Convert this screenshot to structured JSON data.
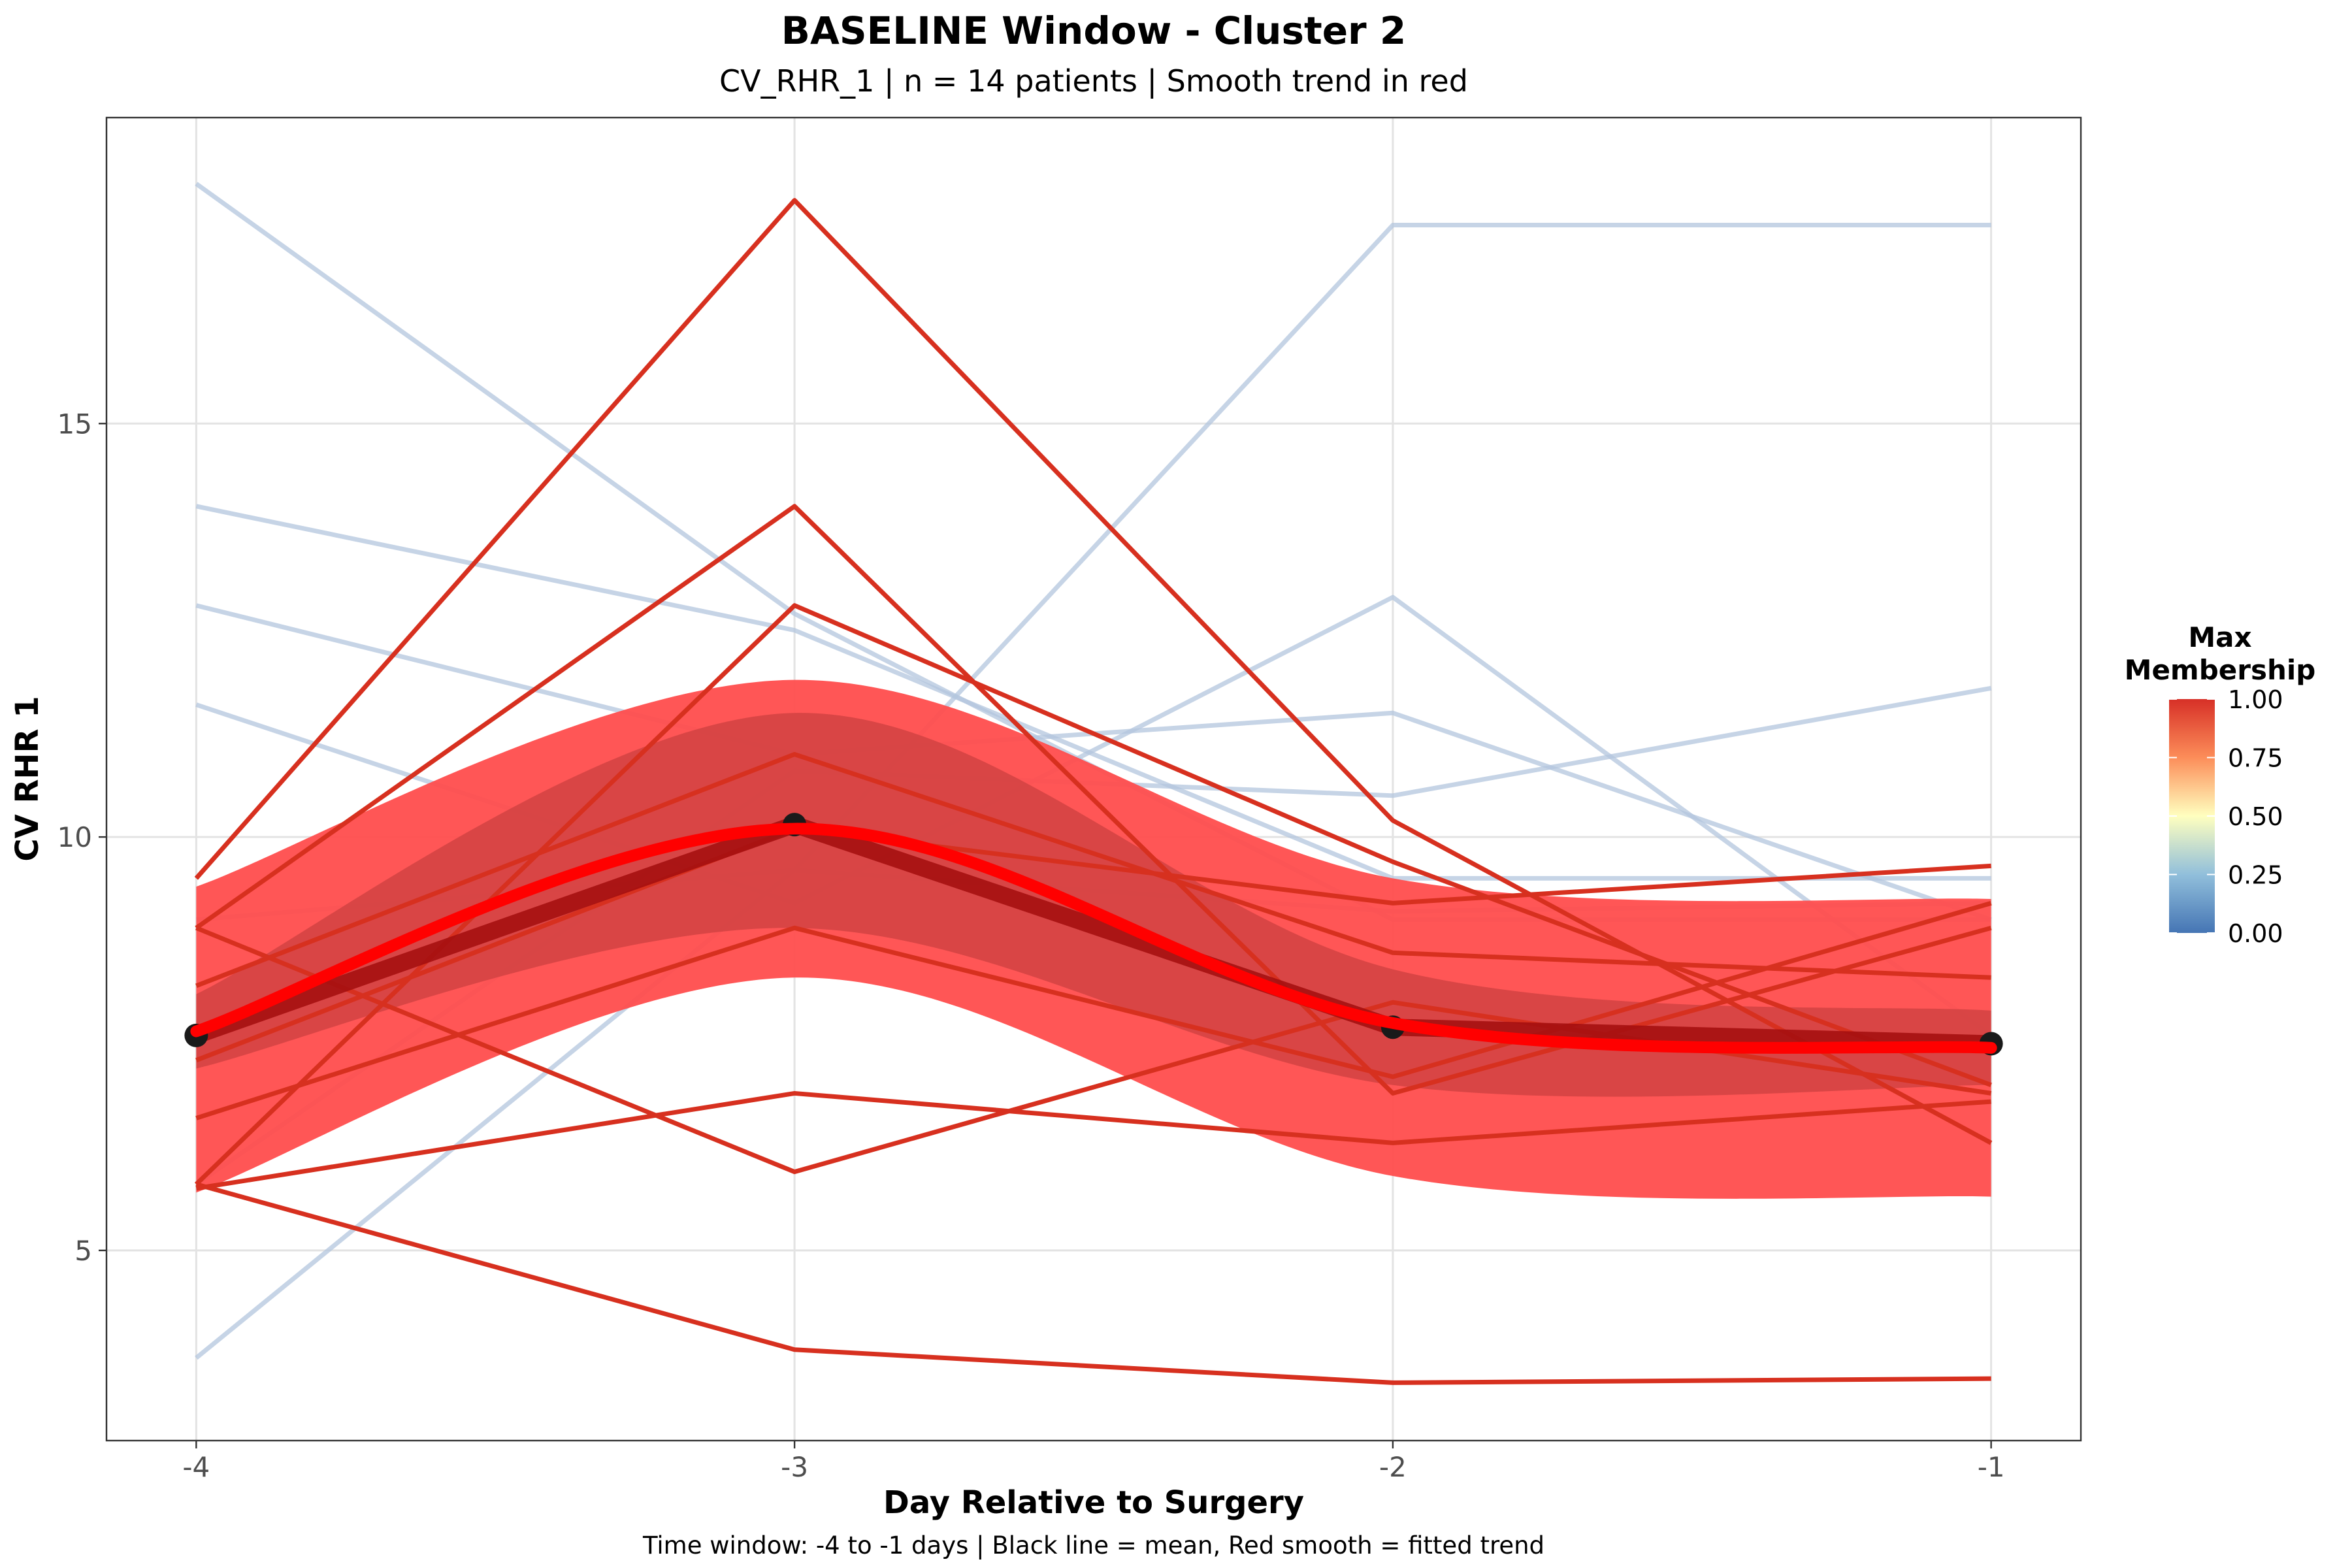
{
  "chart_data": {
    "type": "line",
    "title": "BASELINE Window - Cluster 2",
    "subtitle": "CV_RHR_1 | n = 14 patients | Smooth trend in red",
    "xlabel": "Day Relative to Surgery",
    "ylabel": "CV RHR 1",
    "caption": "Time window: -4 to -1 days | Black line = mean, Red smooth = fitted trend",
    "x": [
      -4,
      -3,
      -2,
      -1
    ],
    "x_tick_labels": [
      "-4",
      "-3",
      "-2",
      "-1"
    ],
    "y_ticks": [
      5,
      10,
      15
    ],
    "y_tick_labels": [
      "5",
      "10",
      "15"
    ],
    "xlim": [
      -4.15,
      -0.85
    ],
    "ylim": [
      2.7,
      18.7
    ],
    "grid": true,
    "legend": {
      "title": "Max\nMembership",
      "placement": "right",
      "tick_values": [
        0.0,
        0.25,
        0.5,
        0.75,
        1.0
      ],
      "tick_labels": [
        "0.00",
        "0.25",
        "0.50",
        "0.75",
        "1.00"
      ],
      "gradient_colors": [
        "#4575b4",
        "#91bfdb",
        "#ffffbf",
        "#fc8d59",
        "#d73027"
      ]
    },
    "colors": {
      "low_membership": "#b3c6de",
      "high_membership": "#d7301f",
      "ribbon_outer": "#ff4d4d",
      "ribbon_inner": "#cc4040",
      "mean_line": "#a50f0f",
      "mean_point": "#1a1a1a",
      "smooth_line": "#ff0000"
    },
    "series_low_membership": [
      [
        17.9,
        12.7,
        9.0,
        9.0
      ],
      [
        14.0,
        12.5,
        9.5,
        9.5
      ],
      [
        12.8,
        11.0,
        11.5,
        9.0
      ],
      [
        11.6,
        9.2,
        12.9,
        7.6
      ],
      [
        3.7,
        9.6,
        17.4,
        17.4
      ],
      [
        5.8,
        10.8,
        10.5,
        11.8
      ],
      [
        9.0,
        9.6,
        9.1,
        9.2
      ]
    ],
    "series_high_membership": [
      [
        9.5,
        17.7,
        10.2,
        6.3
      ],
      [
        8.9,
        14.0,
        6.9,
        8.9
      ],
      [
        5.8,
        12.8,
        9.7,
        7.0
      ],
      [
        8.2,
        11.0,
        8.6,
        8.3
      ],
      [
        7.3,
        10.1,
        9.2,
        9.65
      ],
      [
        6.6,
        8.9,
        7.1,
        9.2
      ],
      [
        5.8,
        3.8,
        3.4,
        3.45
      ],
      [
        5.75,
        6.9,
        6.3,
        6.8
      ],
      [
        8.9,
        5.95,
        8.0,
        6.9
      ]
    ],
    "mean": [
      7.6,
      10.15,
      7.7,
      7.5
    ],
    "smooth": [
      7.65,
      10.1,
      7.75,
      7.45
    ],
    "ribbon_outer_lower": [
      5.7,
      8.3,
      5.9,
      5.65
    ],
    "ribbon_outer_upper": [
      9.4,
      11.9,
      9.5,
      9.25
    ],
    "ribbon_inner_lower": [
      7.2,
      8.9,
      7.0,
      7.0
    ],
    "ribbon_inner_upper": [
      8.1,
      11.5,
      8.4,
      7.9
    ]
  }
}
